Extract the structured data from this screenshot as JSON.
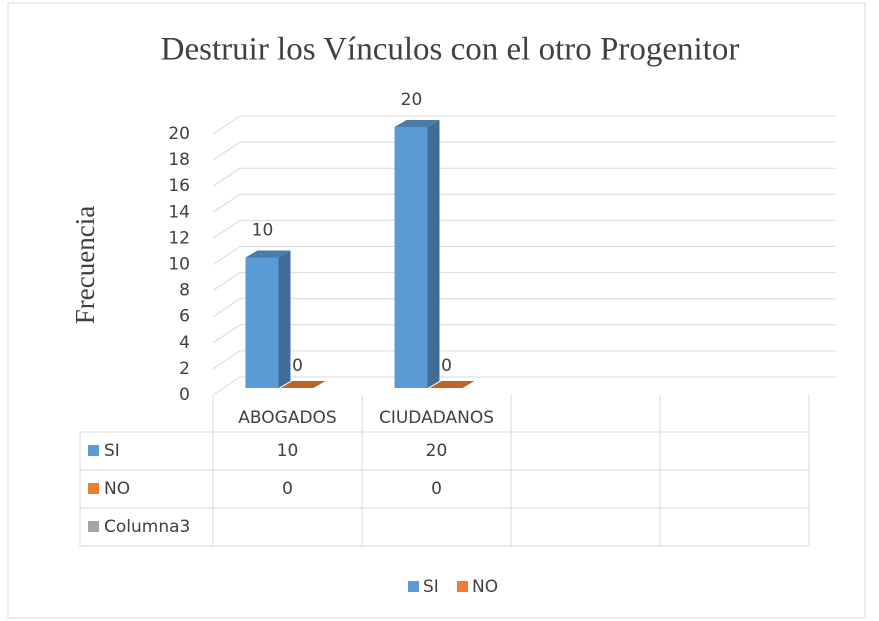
{
  "chart_data": {
    "type": "bar3d",
    "title": "Destruir los Vínculos con el otro Progenitor",
    "y_label": "Frecuencia",
    "categories": [
      "ABOGADOS",
      "CIUDADANOS",
      null,
      null
    ],
    "series": [
      {
        "name": "SI",
        "color": "#5b9bd5",
        "values": [
          10,
          20,
          null,
          null
        ]
      },
      {
        "name": "NO",
        "color": "#ed7d31",
        "values": [
          0,
          0,
          null,
          null
        ]
      },
      {
        "name": "Columna3",
        "color": "#a5a5a5",
        "values": [
          null,
          null,
          null,
          null
        ]
      }
    ],
    "legend_series": [
      0,
      1
    ],
    "ylim": [
      0,
      20
    ],
    "yticks": [
      0,
      2,
      4,
      6,
      8,
      10,
      12,
      14,
      16,
      18,
      20
    ],
    "grid": true
  }
}
